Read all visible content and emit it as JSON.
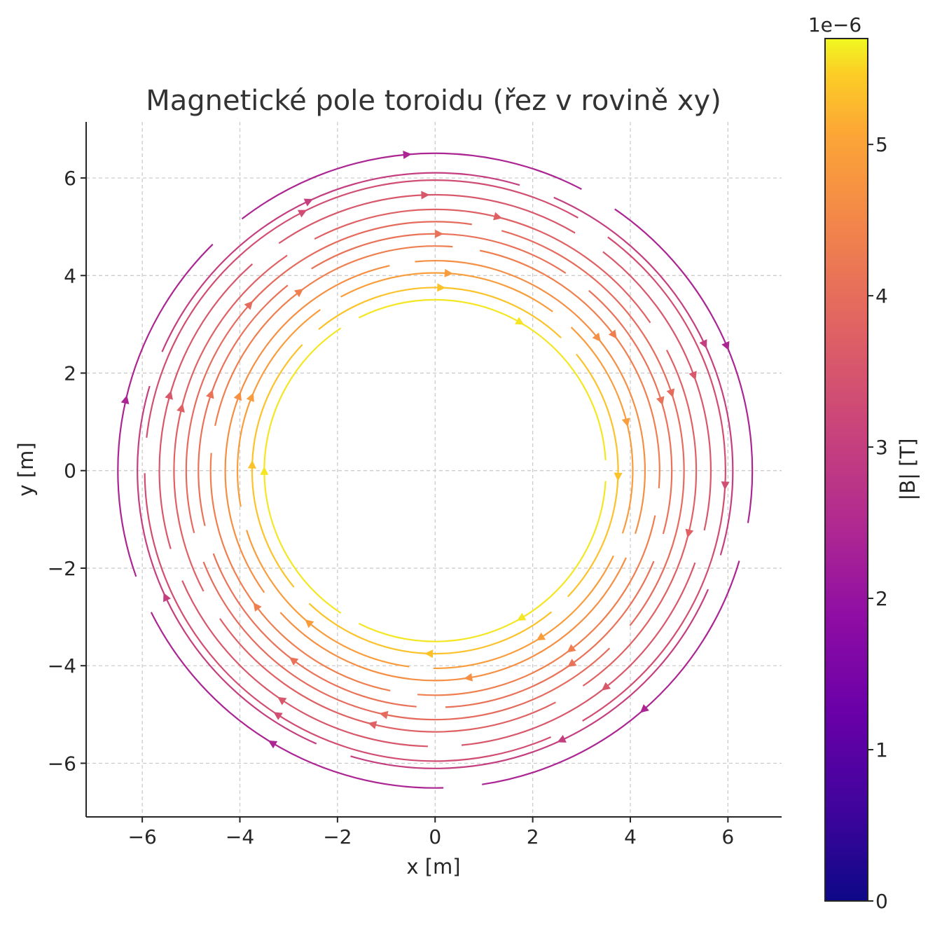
{
  "chart_data": {
    "type": "streamplot",
    "title": "Magnetické pole toroidu (řez v rovině xy)",
    "xlabel": "x [m]",
    "ylabel": "y [m]",
    "xlim": [
      -7.15,
      7.1
    ],
    "ylim": [
      -7.1,
      7.15
    ],
    "xticks": [
      -6,
      -4,
      -2,
      0,
      2,
      4,
      6
    ],
    "yticks": [
      -6,
      -4,
      -2,
      0,
      2,
      4,
      6
    ],
    "xtick_labels": [
      "−6",
      "−4",
      "−2",
      "0",
      "2",
      "4",
      "6"
    ],
    "ytick_labels": [
      "−6",
      "−4",
      "−2",
      "0",
      "2",
      "4",
      "6"
    ],
    "grid": true,
    "flow_direction": "clockwise",
    "colormap": "plasma",
    "colorbar": {
      "label": "|B| [T]",
      "multiplier": "1e−6",
      "range": [
        0,
        5.7e-06
      ],
      "ticks": [
        0,
        1,
        2,
        3,
        4,
        5
      ],
      "tick_labels": [
        "0",
        "1",
        "2",
        "3",
        "4",
        "5"
      ]
    },
    "series": [
      {
        "radius": 3.5,
        "B": 5.6e-06
      },
      {
        "radius": 3.75,
        "B": 5.35e-06
      },
      {
        "radius": 4.05,
        "B": 4.9e-06
      },
      {
        "radius": 4.3,
        "B": 4.65e-06
      },
      {
        "radius": 4.6,
        "B": 4.35e-06
      },
      {
        "radius": 4.85,
        "B": 4.1e-06
      },
      {
        "radius": 5.1,
        "B": 3.95e-06
      },
      {
        "radius": 5.35,
        "B": 3.75e-06
      },
      {
        "radius": 5.65,
        "B": 3.55e-06
      },
      {
        "radius": 5.95,
        "B": 3.35e-06
      },
      {
        "radius": 6.1,
        "B": 3e-06
      },
      {
        "radius": 6.5,
        "B": 2.4e-06
      }
    ]
  }
}
